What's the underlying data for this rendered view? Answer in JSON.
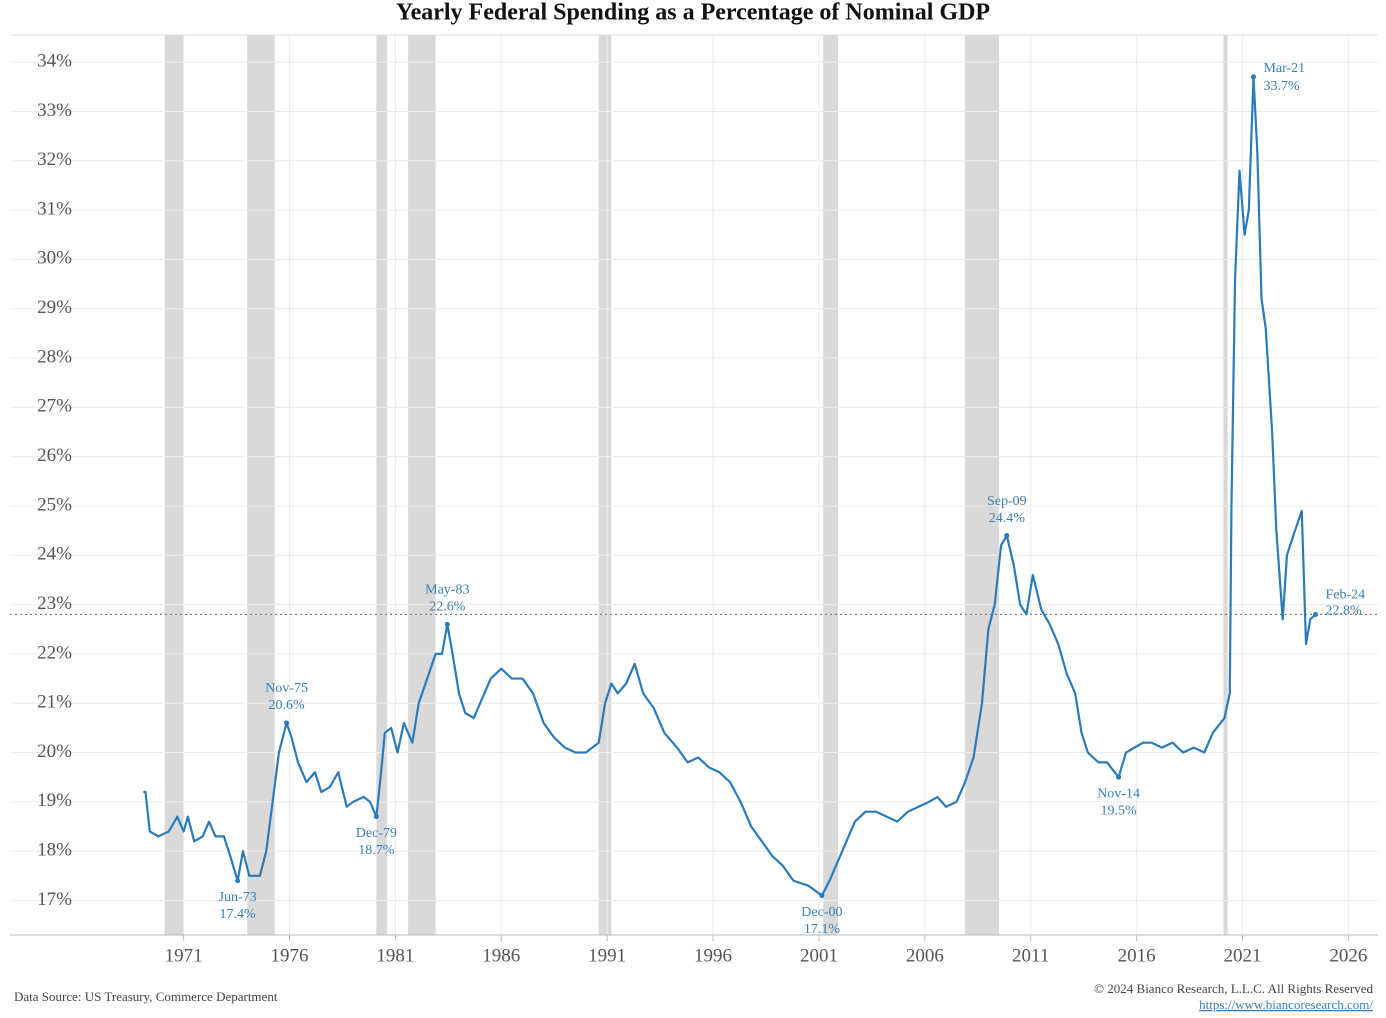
{
  "chart_data": {
    "type": "line",
    "title": "Yearly Federal Spending as a Percentage of Nominal GDP",
    "source": "Data Source: US Treasury, Commerce Department",
    "copyright": "© 2024 Bianco Research, L.L.C. All Rights Reserved",
    "url": "https://www.biancoresearch.com/",
    "xlim": [
      1962.8,
      2027.4
    ],
    "xticks": [
      1971,
      1976,
      1981,
      1986,
      1991,
      1996,
      2001,
      2006,
      2011,
      2016,
      2021,
      2026
    ],
    "ylim": [
      16.3,
      34.55
    ],
    "yticks": [
      {
        "value": 17,
        "label": "17%"
      },
      {
        "value": 18,
        "label": "18%"
      },
      {
        "value": 19,
        "label": "19%"
      },
      {
        "value": 20,
        "label": "20%"
      },
      {
        "value": 21,
        "label": "21%"
      },
      {
        "value": 22,
        "label": "22%"
      },
      {
        "value": 23,
        "label": "23%"
      },
      {
        "value": 24,
        "label": "24%"
      },
      {
        "value": 25,
        "label": "25%"
      },
      {
        "value": 26,
        "label": "26%"
      },
      {
        "value": 27,
        "label": "27%"
      },
      {
        "value": 28,
        "label": "28%"
      },
      {
        "value": 29,
        "label": "29%"
      },
      {
        "value": 30,
        "label": "30%"
      },
      {
        "value": 31,
        "label": "31%"
      },
      {
        "value": 32,
        "label": "32%"
      },
      {
        "value": 33,
        "label": "33%"
      },
      {
        "value": 34,
        "label": "34%"
      }
    ],
    "grid": true,
    "recessions": [
      [
        1970.1,
        1971.0
      ],
      [
        1974.0,
        1975.3
      ],
      [
        1980.1,
        1980.6
      ],
      [
        1981.6,
        1982.9
      ],
      [
        1990.6,
        1991.2
      ],
      [
        2001.2,
        2001.9
      ],
      [
        2007.9,
        2009.5
      ],
      [
        2020.1,
        2020.3
      ]
    ],
    "recession_color": "#d9d9d9",
    "series": [
      {
        "color": "#2b7bba",
        "x": [
          1969.1,
          1969.2,
          1969.4,
          1969.8,
          1970.3,
          1970.7,
          1971.0,
          1971.2,
          1971.5,
          1971.9,
          1972.2,
          1972.5,
          1972.9,
          1973.2,
          1973.55,
          1973.8,
          1974.1,
          1974.6,
          1974.9,
          1975.2,
          1975.5,
          1975.86,
          1976.1,
          1976.4,
          1976.8,
          1977.2,
          1977.5,
          1977.9,
          1978.3,
          1978.7,
          1979.0,
          1979.5,
          1979.8,
          1980.1,
          1980.3,
          1980.5,
          1980.8,
          1981.1,
          1981.4,
          1981.8,
          1982.1,
          1982.5,
          1982.9,
          1983.2,
          1983.45,
          1983.7,
          1984.0,
          1984.3,
          1984.7,
          1985.1,
          1985.5,
          1986.0,
          1986.5,
          1987.0,
          1987.5,
          1988.0,
          1988.5,
          1989.0,
          1989.5,
          1990.0,
          1990.6,
          1990.9,
          1991.2,
          1991.5,
          1991.9,
          1992.3,
          1992.7,
          1993.2,
          1993.7,
          1994.3,
          1994.8,
          1995.3,
          1995.8,
          1996.3,
          1996.8,
          1997.3,
          1997.8,
          1998.3,
          1998.8,
          1999.3,
          1999.8,
          2000.5,
          2001.14,
          2001.5,
          2001.9,
          2002.3,
          2002.7,
          2003.2,
          2003.7,
          2004.2,
          2004.7,
          2005.2,
          2005.7,
          2006.2,
          2006.6,
          2007.0,
          2007.5,
          2007.9,
          2008.3,
          2008.7,
          2009.0,
          2009.3,
          2009.6,
          2009.87,
          2010.2,
          2010.5,
          2010.8,
          2011.1,
          2011.5,
          2011.9,
          2012.3,
          2012.7,
          2013.1,
          2013.4,
          2013.7,
          2014.2,
          2014.6,
          2015.15,
          2015.5,
          2015.9,
          2016.3,
          2016.7,
          2017.2,
          2017.7,
          2018.2,
          2018.7,
          2019.2,
          2019.6,
          2020.15,
          2020.4,
          2020.48,
          2020.65,
          2020.86,
          2021.1,
          2021.3,
          2021.52,
          2021.7,
          2021.9,
          2022.1,
          2022.4,
          2022.6,
          2022.9,
          2023.1,
          2023.4,
          2023.8,
          2024.0,
          2024.2,
          2024.45
        ],
        "values": [
          19.2,
          19.2,
          18.4,
          18.3,
          18.4,
          18.7,
          18.4,
          18.7,
          18.2,
          18.3,
          18.6,
          18.3,
          18.3,
          17.9,
          17.4,
          18.0,
          17.5,
          17.5,
          18.0,
          19.0,
          20.0,
          20.6,
          20.3,
          19.8,
          19.4,
          19.6,
          19.2,
          19.3,
          19.6,
          18.9,
          19.0,
          19.1,
          19.0,
          18.7,
          19.5,
          20.4,
          20.5,
          20.0,
          20.6,
          20.2,
          21.0,
          21.5,
          22.0,
          22.0,
          22.6,
          22.0,
          21.2,
          20.8,
          20.7,
          21.1,
          21.5,
          21.7,
          21.5,
          21.5,
          21.2,
          20.6,
          20.3,
          20.1,
          20.0,
          20.0,
          20.2,
          21.0,
          21.4,
          21.2,
          21.4,
          21.8,
          21.2,
          20.9,
          20.4,
          20.1,
          19.8,
          19.9,
          19.7,
          19.6,
          19.4,
          19.0,
          18.5,
          18.2,
          17.9,
          17.7,
          17.4,
          17.3,
          17.1,
          17.4,
          17.8,
          18.2,
          18.6,
          18.8,
          18.8,
          18.7,
          18.6,
          18.8,
          18.9,
          19.0,
          19.1,
          18.9,
          19.0,
          19.4,
          19.9,
          21.0,
          22.5,
          23.0,
          24.2,
          24.4,
          23.8,
          23.0,
          22.8,
          23.6,
          22.9,
          22.6,
          22.2,
          21.6,
          21.2,
          20.4,
          20.0,
          19.8,
          19.8,
          19.5,
          20.0,
          20.1,
          20.2,
          20.2,
          20.1,
          20.2,
          20.0,
          20.1,
          20.0,
          20.4,
          20.7,
          21.2,
          25.0,
          29.6,
          31.8,
          30.5,
          31.0,
          33.7,
          32.2,
          29.2,
          28.6,
          26.5,
          24.5,
          22.7,
          24.0,
          24.4,
          24.9,
          22.2,
          22.7,
          22.8
        ]
      }
    ],
    "annotations": [
      {
        "text": "Jun-73",
        "x": 1973.55,
        "value": 17.4,
        "value_label": "17.4%"
      },
      {
        "text": "Nov-75",
        "x": 1975.86,
        "value": 20.6,
        "value_label": "20.6%"
      },
      {
        "text": "Dec-79",
        "x": 1980.1,
        "value": 18.7,
        "value_label": "18.7%"
      },
      {
        "text": "May-83",
        "x": 1983.45,
        "value": 22.6,
        "value_label": "22.6%"
      },
      {
        "text": "Dec-00",
        "x": 2001.14,
        "value": 17.1,
        "value_label": "17.1%"
      },
      {
        "text": "Sep-09",
        "x": 2009.87,
        "value": 24.4,
        "value_label": "24.4%"
      },
      {
        "text": "Nov-14",
        "x": 2015.15,
        "value": 19.5,
        "value_label": "19.5%"
      },
      {
        "text": "Mar-21",
        "x": 2021.52,
        "value": 33.7,
        "value_label": "33.7%"
      },
      {
        "text": "Feb-24",
        "x": 2024.45,
        "value": 22.8,
        "value_label": "22.8%"
      }
    ]
  }
}
